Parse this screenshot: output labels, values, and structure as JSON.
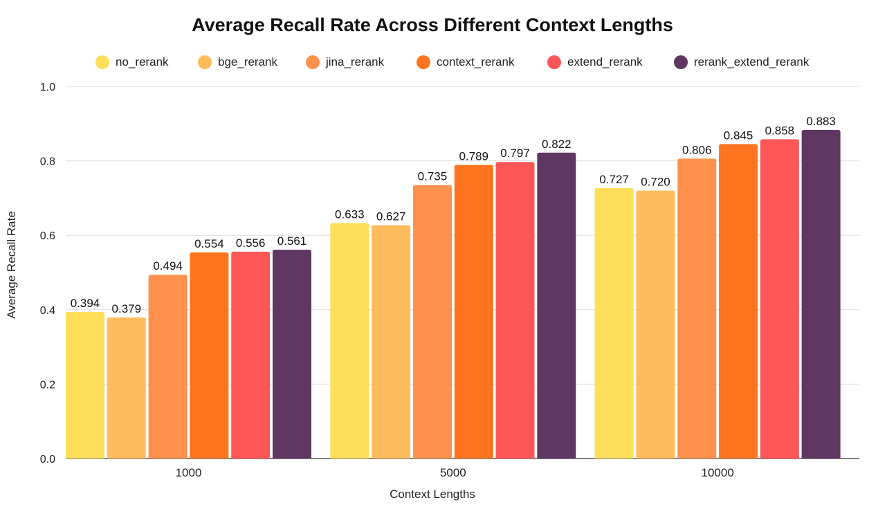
{
  "chart_data": {
    "type": "bar",
    "title": "Average Recall Rate Across Different Context Lengths",
    "xlabel": "Context Lengths",
    "ylabel": "Average Recall Rate",
    "categories": [
      "1000",
      "5000",
      "10000"
    ],
    "ylim": [
      0,
      1.0
    ],
    "yticks": [
      "0.0",
      "0.2",
      "0.4",
      "0.6",
      "0.8",
      "1.0"
    ],
    "grid": true,
    "legend_position": "top",
    "series": [
      {
        "name": "no_rerank",
        "color": "#FFDE59",
        "values": [
          0.394,
          0.633,
          0.727
        ],
        "labels": [
          "0.394",
          "0.633",
          "0.727"
        ]
      },
      {
        "name": "bge_rerank",
        "color": "#FFBC5C",
        "values": [
          0.379,
          0.627,
          0.72
        ],
        "labels": [
          "0.379",
          "0.627",
          "0.720"
        ]
      },
      {
        "name": "jina_rerank",
        "color": "#FF914D",
        "values": [
          0.494,
          0.735,
          0.806
        ],
        "labels": [
          "0.494",
          "0.735",
          "0.806"
        ]
      },
      {
        "name": "context_rerank",
        "color": "#FF751F",
        "values": [
          0.554,
          0.789,
          0.845
        ],
        "labels": [
          "0.554",
          "0.789",
          "0.845"
        ]
      },
      {
        "name": "extend_rerank",
        "color": "#FF5757",
        "values": [
          0.556,
          0.797,
          0.858
        ],
        "labels": [
          "0.556",
          "0.797",
          "0.858"
        ]
      },
      {
        "name": "rerank_extend_rerank",
        "color": "#5E3762",
        "values": [
          0.561,
          0.822,
          0.883
        ],
        "labels": [
          "0.561",
          "0.822",
          "0.883"
        ]
      }
    ]
  }
}
